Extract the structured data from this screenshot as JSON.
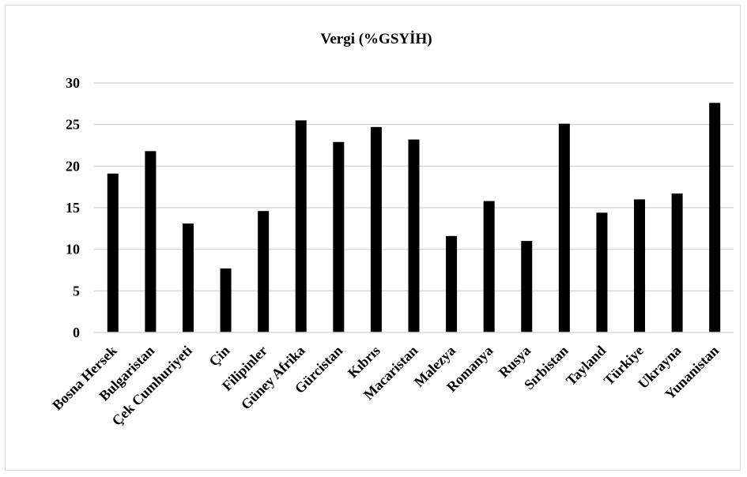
{
  "chart_data": {
    "type": "bar",
    "title": "Vergi (%GSYİH)",
    "xlabel": "",
    "ylabel": "",
    "ylim": [
      0,
      30
    ],
    "yticks": [
      0,
      5,
      10,
      15,
      20,
      25,
      30
    ],
    "grid": true,
    "legend": "none",
    "bar_color": "#000000",
    "grid_color": "#d9d9d9",
    "categories": [
      "Bosna Hersek",
      "Bulgaristan",
      "Çek Cumhuriyeti",
      "Çin",
      "Filipinler",
      "Güney Afrika",
      "Gürcistan",
      "Kıbrıs",
      "Macaristan",
      "Malezya",
      "Romanya",
      "Rusya",
      "Sırbistan",
      "Tayland",
      "Türkiye",
      "Ukrayna",
      "Yunanistan"
    ],
    "values": [
      19.1,
      21.8,
      13.1,
      7.7,
      14.6,
      25.5,
      22.9,
      24.7,
      23.2,
      11.6,
      15.8,
      11.0,
      25.1,
      14.4,
      16.0,
      16.7,
      27.6
    ]
  }
}
